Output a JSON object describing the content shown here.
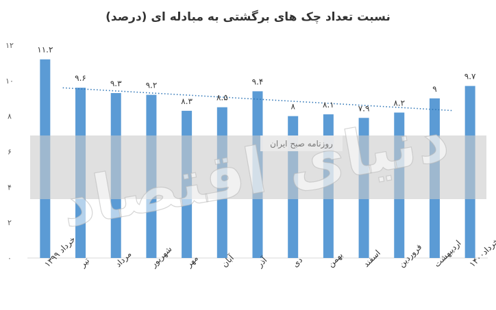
{
  "chart_data": {
    "type": "bar",
    "title": "نسبت تعداد چک های برگشتی به مبادله ای (درصد)",
    "categories": [
      "خرداد ۱۳۹۹",
      "تیر",
      "مرداد",
      "شهریور",
      "مهر",
      "آبان",
      "آذر",
      "دی",
      "بهمن",
      "اسفند",
      "فروردین",
      "اردیبهشت",
      "خرداد۱۴۰۰"
    ],
    "values": [
      11.2,
      9.6,
      9.3,
      9.2,
      8.3,
      8.5,
      9.4,
      8.0,
      8.1,
      7.9,
      8.2,
      9.0,
      9.7
    ],
    "data_labels": [
      "۱۱.۲",
      "۹.۶",
      "۹.۳",
      "۹.۲",
      "۸.۳",
      "۸.۵",
      "۹.۴",
      "۸",
      "۸.۱",
      "۷.۹",
      "۸.۲",
      "۹",
      "۹.۷"
    ],
    "yticks": [
      0,
      2,
      4,
      6,
      8,
      10,
      12
    ],
    "ytick_labels": [
      "۰",
      "۲",
      "۴",
      "۶",
      "۸",
      "۱۰",
      "۱۲"
    ],
    "ylim": [
      0,
      12
    ],
    "trendline": {
      "style": "dotted",
      "type": "linear"
    },
    "grid": false,
    "legend": "none",
    "colors": {
      "bar": "#5b9bd5",
      "trend": "#2e75b6",
      "band": "#d0d0d0"
    }
  },
  "watermark": {
    "main": "دنیای اقتصاد",
    "sub": "روزنامه صبح ایران"
  }
}
